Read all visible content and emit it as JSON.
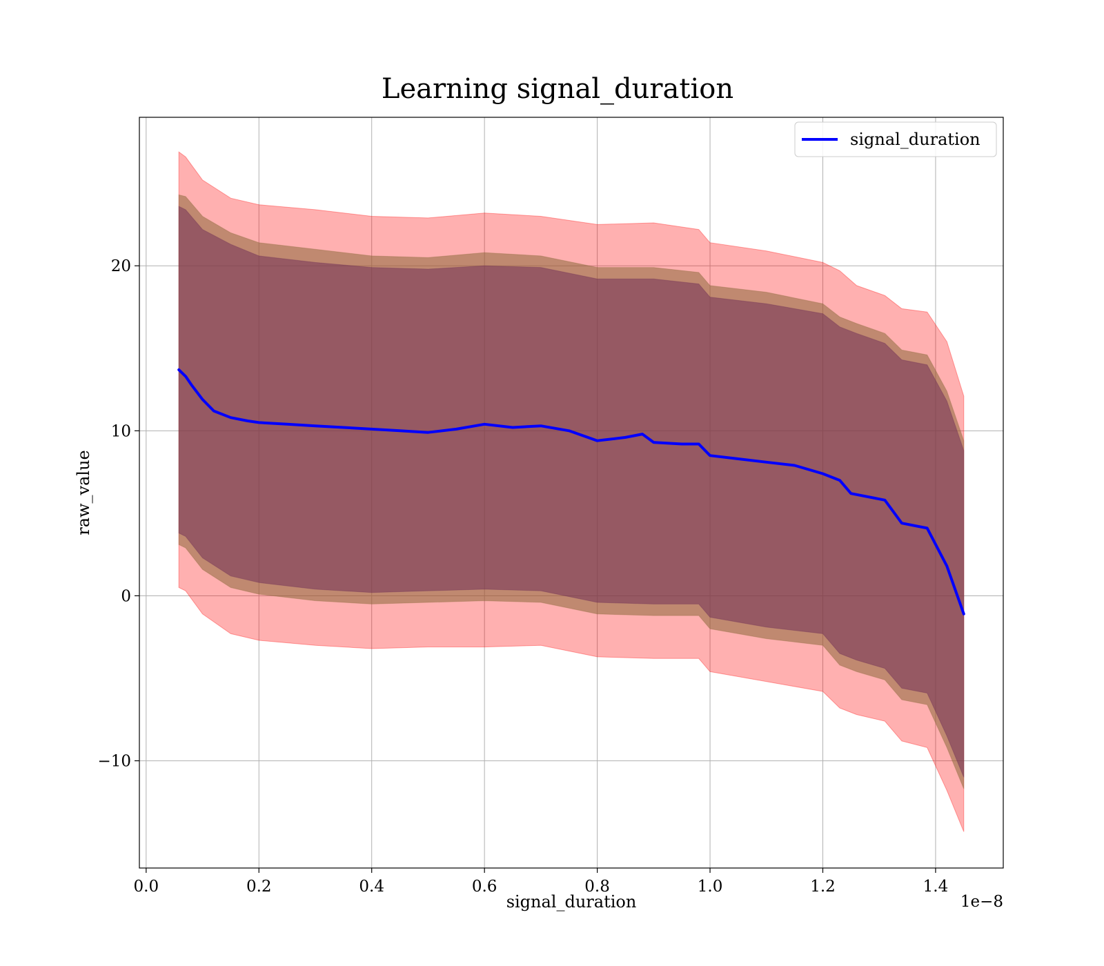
{
  "chart_data": {
    "type": "line",
    "title": "Learning signal_duration",
    "xlabel": "signal_duration",
    "ylabel": "raw_value",
    "x_offset_text": "1e−8",
    "xlim": [
      -0.012,
      1.52
    ],
    "ylim": [
      -16.5,
      29
    ],
    "x_ticks": [
      0.0,
      0.2,
      0.4,
      0.6,
      0.8,
      1.0,
      1.2,
      1.4
    ],
    "x_tick_labels": [
      "0.0",
      "0.2",
      "0.4",
      "0.6",
      "0.8",
      "1.0",
      "1.2",
      "1.4"
    ],
    "y_ticks": [
      -10,
      0,
      10,
      20
    ],
    "y_tick_labels": [
      "−10",
      "0",
      "10",
      "20"
    ],
    "grid": true,
    "legend": {
      "position": "top-right",
      "entries": [
        "signal_duration"
      ]
    },
    "colors": {
      "line": "#0000ff",
      "outer_band": "#ff0000",
      "middle_band": "#8c6a3c",
      "inner_band": "#6b2a55",
      "grid": "#b0b0b0"
    },
    "series": [
      {
        "name": "signal_duration",
        "x": [
          0.058,
          0.07,
          0.08,
          0.1,
          0.12,
          0.15,
          0.18,
          0.2,
          0.25,
          0.3,
          0.35,
          0.4,
          0.45,
          0.5,
          0.55,
          0.6,
          0.65,
          0.7,
          0.75,
          0.8,
          0.85,
          0.88,
          0.9,
          0.95,
          0.98,
          1.0,
          1.05,
          1.1,
          1.15,
          1.2,
          1.23,
          1.25,
          1.31,
          1.34,
          1.385,
          1.42,
          1.45
        ],
        "y": [
          13.7,
          13.3,
          12.8,
          11.9,
          11.2,
          10.8,
          10.6,
          10.5,
          10.4,
          10.3,
          10.2,
          10.1,
          10.0,
          9.9,
          10.1,
          10.4,
          10.2,
          10.3,
          10.0,
          9.4,
          9.6,
          9.8,
          9.3,
          9.2,
          9.2,
          8.5,
          8.3,
          8.1,
          7.9,
          7.4,
          7.0,
          6.2,
          5.8,
          4.4,
          4.1,
          1.8,
          -1.1
        ]
      }
    ],
    "bands": [
      {
        "name": "outer",
        "x": [
          0.058,
          0.07,
          0.1,
          0.15,
          0.2,
          0.3,
          0.4,
          0.5,
          0.6,
          0.7,
          0.8,
          0.9,
          0.98,
          1.0,
          1.1,
          1.2,
          1.23,
          1.26,
          1.31,
          1.34,
          1.385,
          1.42,
          1.45
        ],
        "upper": [
          26.9,
          26.6,
          25.2,
          24.1,
          23.7,
          23.4,
          23.0,
          22.9,
          23.2,
          23.0,
          22.5,
          22.6,
          22.2,
          21.4,
          20.9,
          20.2,
          19.7,
          18.8,
          18.2,
          17.4,
          17.2,
          15.4,
          12.1
        ],
        "lower": [
          0.5,
          0.3,
          -1.1,
          -2.3,
          -2.7,
          -3.0,
          -3.2,
          -3.1,
          -3.1,
          -3.0,
          -3.7,
          -3.8,
          -3.8,
          -4.6,
          -5.2,
          -5.8,
          -6.8,
          -7.2,
          -7.6,
          -8.8,
          -9.2,
          -11.8,
          -14.3
        ]
      },
      {
        "name": "middle",
        "x": [
          0.058,
          0.07,
          0.1,
          0.15,
          0.2,
          0.3,
          0.4,
          0.5,
          0.6,
          0.7,
          0.8,
          0.9,
          0.98,
          1.0,
          1.1,
          1.2,
          1.23,
          1.26,
          1.31,
          1.34,
          1.385,
          1.42,
          1.45
        ],
        "upper": [
          24.3,
          24.2,
          23.0,
          22.0,
          21.4,
          21.0,
          20.6,
          20.5,
          20.8,
          20.6,
          19.9,
          19.9,
          19.6,
          18.8,
          18.4,
          17.7,
          16.9,
          16.5,
          15.9,
          14.9,
          14.6,
          12.4,
          9.4
        ],
        "lower": [
          3.1,
          2.9,
          1.6,
          0.5,
          0.1,
          -0.3,
          -0.5,
          -0.4,
          -0.3,
          -0.4,
          -1.1,
          -1.2,
          -1.2,
          -2.0,
          -2.6,
          -3.0,
          -4.2,
          -4.6,
          -5.1,
          -6.3,
          -6.6,
          -9.2,
          -11.7
        ]
      },
      {
        "name": "inner",
        "x": [
          0.058,
          0.07,
          0.1,
          0.15,
          0.2,
          0.3,
          0.4,
          0.5,
          0.6,
          0.7,
          0.8,
          0.9,
          0.98,
          1.0,
          1.1,
          1.2,
          1.23,
          1.26,
          1.31,
          1.34,
          1.385,
          1.42,
          1.45
        ],
        "upper": [
          23.6,
          23.4,
          22.2,
          21.3,
          20.6,
          20.2,
          19.9,
          19.8,
          20.0,
          19.9,
          19.2,
          19.2,
          18.9,
          18.1,
          17.7,
          17.1,
          16.3,
          15.9,
          15.3,
          14.3,
          14.0,
          11.8,
          8.8
        ],
        "lower": [
          3.8,
          3.6,
          2.3,
          1.2,
          0.8,
          0.4,
          0.2,
          0.3,
          0.4,
          0.3,
          -0.4,
          -0.5,
          -0.5,
          -1.3,
          -1.9,
          -2.3,
          -3.5,
          -3.9,
          -4.4,
          -5.6,
          -5.9,
          -8.5,
          -11.0
        ]
      }
    ]
  }
}
